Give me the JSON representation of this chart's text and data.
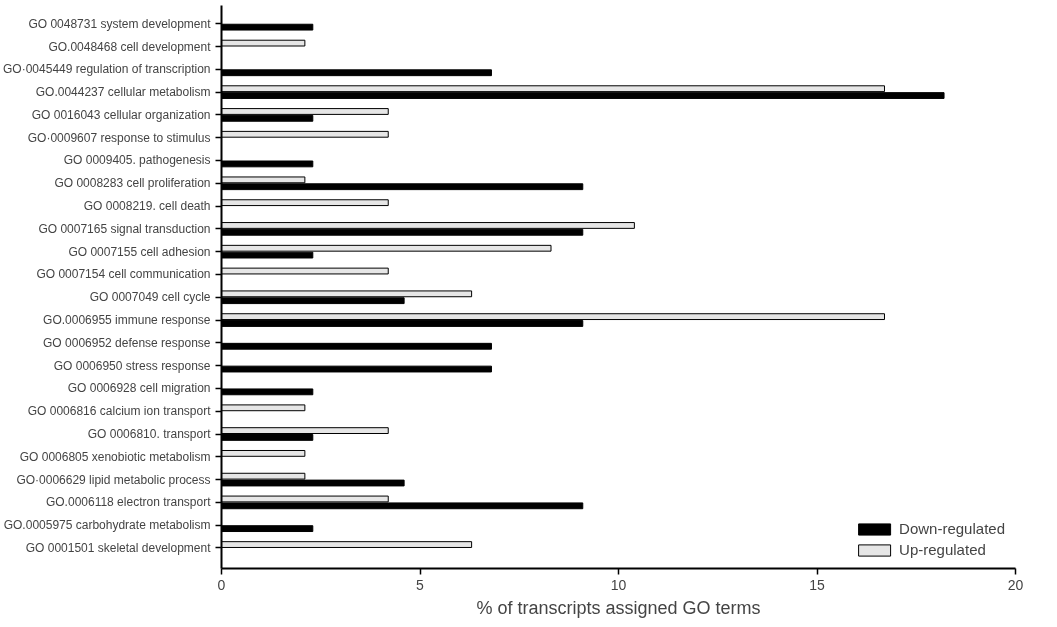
{
  "chart_data": {
    "type": "bar",
    "orientation": "horizontal",
    "xlabel": "% of transcripts assigned GO terms",
    "categories": [
      "GO 0048731 system development",
      "GO.0048468 cell development",
      "GO·0045449 regulation of transcription",
      "GO.0044237 cellular metabolism",
      "GO 0016043 cellular organization",
      "GO·0009607 response to stimulus",
      "GO 0009405. pathogenesis",
      "GO 0008283 cell proliferation",
      "GO 0008219. cell death",
      "GO 0007165 signal transduction",
      "GO 0007155 cell adhesion",
      "GO 0007154 cell communication",
      "GO 0007049 cell cycle",
      "GO.0006955 immune response",
      "GO 0006952 defense response",
      "GO 0006950 stress response",
      "GO 0006928 cell migration",
      "GO 0006816 calcium ion transport",
      "GO 0006810. transport",
      "GO 0006805 xenobiotic metabolism",
      "GO·0006629 lipid metabolic process",
      "GO.0006118 electron transport",
      "GO.0005975 carbohydrate metabolism",
      "GO 0001501 skeletal development"
    ],
    "series": [
      {
        "name": "Down-regulated",
        "color": "#000000",
        "values": [
          2.3,
          null,
          6.8,
          18.2,
          2.3,
          null,
          2.3,
          9.1,
          null,
          9.1,
          2.3,
          null,
          4.6,
          9.1,
          6.8,
          6.8,
          2.3,
          null,
          2.3,
          null,
          4.6,
          9.1,
          2.3,
          null
        ]
      },
      {
        "name": "Up-regulated",
        "color": "#e6e6e6",
        "values": [
          null,
          2.1,
          null,
          16.7,
          4.2,
          4.2,
          null,
          2.1,
          4.2,
          10.4,
          8.3,
          4.2,
          6.3,
          16.7,
          null,
          null,
          null,
          2.1,
          4.2,
          2.1,
          2.1,
          4.2,
          null,
          6.3
        ]
      }
    ],
    "xlim": [
      0,
      20
    ],
    "xticks": [
      0,
      5,
      10,
      15,
      20
    ],
    "grid": false,
    "legend": "bottom right"
  }
}
